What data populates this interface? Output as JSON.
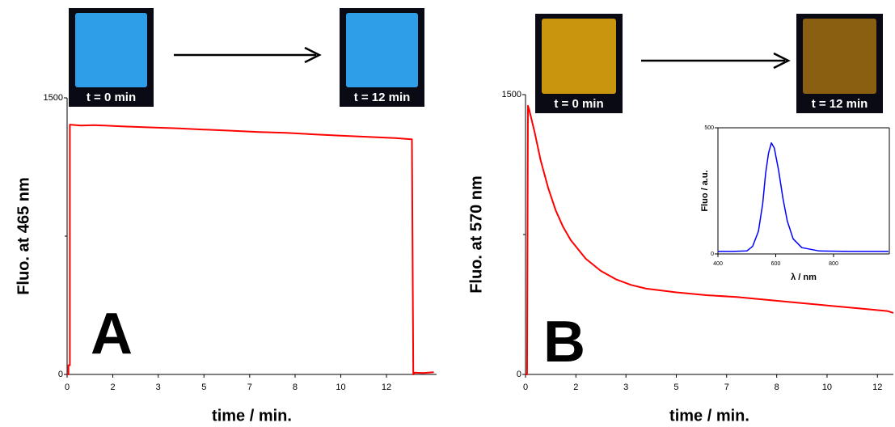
{
  "chart_data": [
    {
      "type": "line",
      "ylabel": "Fluo. at 465 nm",
      "xlabel": "time / min.",
      "panel_label": "A",
      "color": "#ff0000",
      "photos": [
        {
          "label": "t = 0 min",
          "color": "#2f9ee8"
        },
        {
          "label": "t = 12 min",
          "color": "#2f9ee8"
        }
      ],
      "x": [
        0,
        0.05,
        0.05,
        0.1,
        0.1,
        0.5,
        1,
        2,
        3,
        4,
        5,
        6,
        7,
        8,
        9,
        10,
        11,
        12,
        12.6,
        12.65,
        12.7,
        13,
        13.4
      ],
      "values": [
        0,
        0,
        50,
        50,
        1355,
        1350,
        1352,
        1345,
        1340,
        1335,
        1328,
        1322,
        1315,
        1310,
        1302,
        1295,
        1288,
        1282,
        1275,
        0,
        10,
        8,
        12
      ],
      "xlim": [
        0,
        13.5
      ],
      "ylim": [
        0,
        1500
      ],
      "xticks": [
        0,
        {
          "value": 1.67,
          "label": "2"
        },
        {
          "value": 3.33,
          "label": "3"
        },
        5,
        {
          "value": 6.67,
          "label": "7"
        },
        {
          "value": 8.33,
          "label": "8"
        },
        10,
        {
          "value": 11.67,
          "label": "12"
        }
      ],
      "yticks": [
        0,
        1500
      ],
      "minor_yticks": [
        750
      ]
    },
    {
      "type": "line",
      "ylabel": "Fluo. at 570 nm",
      "xlabel": "time / min.",
      "panel_label": "B",
      "color": "#ff0000",
      "photos": [
        {
          "label": "t = 0 min",
          "color": "#c9950f"
        },
        {
          "label": "t = 12 min",
          "color": "#8a5f12"
        }
      ],
      "x": [
        0,
        0.05,
        0.08,
        0.12,
        0.3,
        0.5,
        0.75,
        1,
        1.25,
        1.5,
        2,
        2.5,
        3,
        3.5,
        4,
        5,
        6,
        7,
        8,
        9,
        10,
        11,
        12,
        12.2
      ],
      "values": [
        0,
        0,
        1440,
        1420,
        1300,
        1150,
        1000,
        880,
        790,
        720,
        620,
        555,
        510,
        480,
        460,
        440,
        425,
        415,
        400,
        385,
        370,
        355,
        340,
        330
      ],
      "xlim": [
        0,
        12.2
      ],
      "ylim": [
        0,
        1500
      ],
      "xticks": [
        0,
        {
          "value": 1.67,
          "label": "2"
        },
        {
          "value": 3.33,
          "label": "3"
        },
        5,
        {
          "value": 6.67,
          "label": "7"
        },
        {
          "value": 8.33,
          "label": "8"
        },
        10,
        {
          "value": 11.67,
          "label": "12"
        }
      ],
      "yticks": [
        0,
        1500
      ],
      "minor_yticks": [
        750
      ]
    },
    {
      "type": "line",
      "ylabel": "Fluo / a.u.",
      "xlabel": "λ / nm",
      "color": "#0000ff",
      "x": [
        400,
        450,
        500,
        520,
        540,
        555,
        565,
        575,
        585,
        595,
        610,
        625,
        640,
        660,
        690,
        750,
        850,
        990
      ],
      "values": [
        10,
        10,
        12,
        30,
        90,
        200,
        320,
        400,
        440,
        420,
        330,
        220,
        130,
        60,
        25,
        12,
        10,
        10
      ],
      "xlim": [
        400,
        993
      ],
      "ylim": [
        0,
        500
      ],
      "xticks": [
        400,
        600,
        800
      ],
      "yticks": [
        0,
        500
      ]
    }
  ]
}
